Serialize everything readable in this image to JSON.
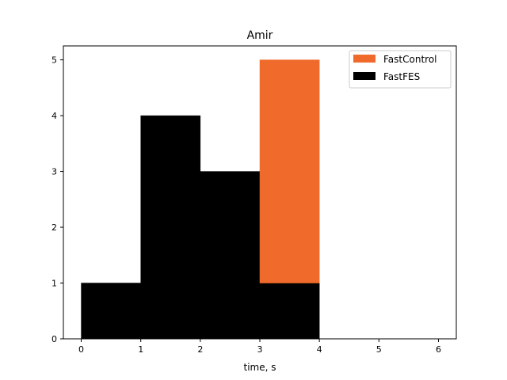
{
  "chart_data": {
    "type": "bar",
    "stacked": true,
    "title": "Amir",
    "xlabel": "time, s",
    "ylabel": "",
    "xlim": [
      -0.3,
      6.3
    ],
    "ylim": [
      0,
      5.25
    ],
    "xticks": [
      0,
      1,
      2,
      3,
      4,
      5,
      6
    ],
    "xtick_labels": [
      "0",
      "1",
      "2",
      "3",
      "4",
      "5",
      "6"
    ],
    "yticks": [
      0,
      1,
      2,
      3,
      4,
      5
    ],
    "ytick_labels": [
      "0",
      "1",
      "2",
      "3",
      "4",
      "5"
    ],
    "bins": [
      [
        0,
        1
      ],
      [
        1,
        2
      ],
      [
        2,
        3
      ],
      [
        3,
        4
      ]
    ],
    "series": [
      {
        "name": "FastFES",
        "color": "#000000",
        "values": [
          1,
          4,
          3,
          1
        ]
      },
      {
        "name": "FastControl",
        "color": "#f06b2b",
        "values": [
          0,
          0,
          0,
          4
        ]
      }
    ],
    "legend": {
      "placement": "top-right",
      "entries": [
        "FastControl",
        "FastFES"
      ]
    },
    "grid": false
  }
}
